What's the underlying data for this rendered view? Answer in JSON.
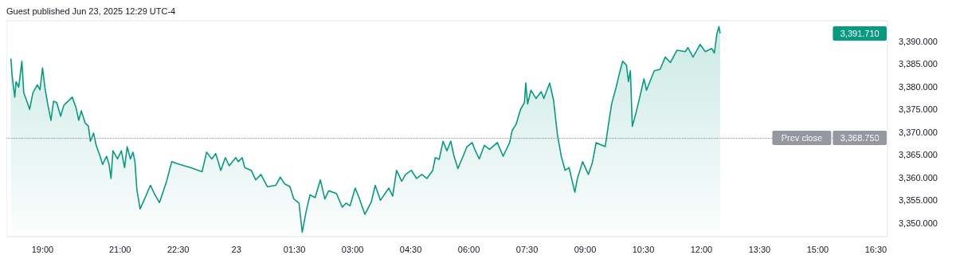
{
  "chart_data": {
    "type": "area",
    "annotations": [
      "Guest published Jun 23, 2025 12:29 UTC-4",
      "3,391.710",
      {
        "text": "3,368.750",
        "x": "2025-06-23T16:48",
        "y": 3368.75
      }
    ],
    "xlim": [
      "2025-06-22T18:04",
      "2025-06-23T16:48"
    ],
    "xticks": [
      {
        "value": "2025-06-22T19:00",
        "label": "19:00"
      },
      {
        "value": "2025-06-22T21:00",
        "label": "21:00"
      },
      {
        "value": "2025-06-22T22:30",
        "label": "22:30"
      },
      {
        "value": "2025-06-23T00:00",
        "label": "23"
      },
      {
        "value": "2025-06-23T01:30",
        "label": "01:30"
      },
      {
        "value": "2025-06-23T03:00",
        "label": "03:00"
      },
      {
        "value": "2025-06-23T04:30",
        "label": "04:30"
      },
      {
        "value": "2025-06-23T06:00",
        "label": "06:00"
      },
      {
        "value": "2025-06-23T07:30",
        "label": "07:30"
      },
      {
        "value": "2025-06-23T09:00",
        "label": "09:00"
      },
      {
        "value": "2025-06-23T10:30",
        "label": "10:30"
      },
      {
        "value": "2025-06-23T12:00",
        "label": "12:00"
      },
      {
        "value": "2025-06-23T13:30",
        "label": "13:30"
      },
      {
        "value": "2025-06-23T15:00",
        "label": "15:00"
      },
      {
        "value": "2025-06-23T16:30",
        "label": "16:30"
      }
    ],
    "ylim": [
      3347,
      3394.5
    ],
    "yticks": [
      {
        "value": 3350,
        "label": "3,350.000"
      },
      {
        "value": 3355,
        "label": "3,355.000"
      },
      {
        "value": 3360,
        "label": "3,360.000"
      },
      {
        "value": 3365,
        "label": "3,365.000"
      },
      {
        "value": 3370,
        "label": "3,370.000"
      },
      {
        "value": 3375,
        "label": "3,375.000"
      },
      {
        "value": 3380,
        "label": "3,380.000"
      },
      {
        "value": 3385,
        "label": "3,385.000"
      },
      {
        "value": 3390,
        "label": "3,390.000"
      }
    ],
    "ref_lines": [
      {
        "axis": "y",
        "value": 3368.75,
        "label": "Prev close",
        "color": "#9598a1",
        "line_style": "dotted"
      }
    ],
    "series": [
      {
        "color": "#089981",
        "x": [
          "2025-06-22T18:11",
          "2025-06-22T18:13",
          "2025-06-22T18:17",
          "2025-06-22T18:19",
          "2025-06-22T18:23",
          "2025-06-22T18:28",
          "2025-06-22T18:31",
          "2025-06-22T18:35",
          "2025-06-22T18:40",
          "2025-06-22T18:45",
          "2025-06-22T18:52",
          "2025-06-22T18:56",
          "2025-06-22T19:00",
          "2025-06-22T19:04",
          "2025-06-22T19:08",
          "2025-06-22T19:13",
          "2025-06-22T19:17",
          "2025-06-22T19:22",
          "2025-06-22T19:28",
          "2025-06-22T19:33",
          "2025-06-22T19:46",
          "2025-06-22T19:52",
          "2025-06-22T19:56",
          "2025-06-22T20:00",
          "2025-06-22T20:06",
          "2025-06-22T20:11",
          "2025-06-22T20:14",
          "2025-06-22T20:19",
          "2025-06-22T20:23",
          "2025-06-22T20:29",
          "2025-06-22T20:33",
          "2025-06-22T20:39",
          "2025-06-22T20:43",
          "2025-06-22T20:46",
          "2025-06-22T20:49",
          "2025-06-22T20:56",
          "2025-06-22T21:02",
          "2025-06-22T21:07",
          "2025-06-22T21:11",
          "2025-06-22T21:16",
          "2025-06-22T21:20",
          "2025-06-22T21:23",
          "2025-06-22T21:26",
          "2025-06-22T21:31",
          "2025-06-22T21:37",
          "2025-06-22T21:47",
          "2025-06-22T21:53",
          "2025-06-22T22:01",
          "2025-06-22T22:12",
          "2025-06-22T22:20",
          "2025-06-22T22:32",
          "2025-06-22T22:49",
          "2025-06-22T23:07",
          "2025-06-22T23:14",
          "2025-06-22T23:22",
          "2025-06-22T23:28",
          "2025-06-22T23:36",
          "2025-06-22T23:43",
          "2025-06-22T23:49",
          "2025-06-22T23:59",
          "2025-06-23T00:03",
          "2025-06-23T00:09",
          "2025-06-23T00:13",
          "2025-06-23T00:23",
          "2025-06-23T00:30",
          "2025-06-23T00:38",
          "2025-06-23T00:48",
          "2025-06-23T01:01",
          "2025-06-23T01:08",
          "2025-06-23T01:15",
          "2025-06-23T01:23",
          "2025-06-23T01:29",
          "2025-06-23T01:37",
          "2025-06-23T01:42",
          "2025-06-23T01:48",
          "2025-06-23T01:54",
          "2025-06-23T02:02",
          "2025-06-23T02:10",
          "2025-06-23T02:17",
          "2025-06-23T02:23",
          "2025-06-23T02:35",
          "2025-06-23T02:44",
          "2025-06-23T02:50",
          "2025-06-23T02:56",
          "2025-06-23T03:04",
          "2025-06-23T03:10",
          "2025-06-23T03:19",
          "2025-06-23T03:29",
          "2025-06-23T03:35",
          "2025-06-23T03:43",
          "2025-06-23T03:56",
          "2025-06-23T04:02",
          "2025-06-23T04:08",
          "2025-06-23T04:16",
          "2025-06-23T04:22",
          "2025-06-23T04:31",
          "2025-06-23T04:39",
          "2025-06-23T04:47",
          "2025-06-23T04:55",
          "2025-06-23T05:04",
          "2025-06-23T05:08",
          "2025-06-23T05:14",
          "2025-06-23T05:20",
          "2025-06-23T05:26",
          "2025-06-23T05:32",
          "2025-06-23T05:37",
          "2025-06-23T05:43",
          "2025-06-23T05:51",
          "2025-06-23T05:57",
          "2025-06-23T06:05",
          "2025-06-23T06:10",
          "2025-06-23T06:16",
          "2025-06-23T06:24",
          "2025-06-23T06:32",
          "2025-06-23T06:44",
          "2025-06-23T06:53",
          "2025-06-23T07:03",
          "2025-06-23T07:07",
          "2025-06-23T07:13",
          "2025-06-23T07:20",
          "2025-06-23T07:26",
          "2025-06-23T07:28",
          "2025-06-23T07:31",
          "2025-06-23T07:36",
          "2025-06-23T07:44",
          "2025-06-23T07:52",
          "2025-06-23T07:56",
          "2025-06-23T08:05",
          "2025-06-23T08:11",
          "2025-06-23T08:17",
          "2025-06-23T08:23",
          "2025-06-23T08:29",
          "2025-06-23T08:35",
          "2025-06-23T08:40",
          "2025-06-23T08:44",
          "2025-06-23T08:48",
          "2025-06-23T08:56",
          "2025-06-23T09:05",
          "2025-06-23T09:11",
          "2025-06-23T09:17",
          "2025-06-23T09:31",
          "2025-06-23T09:35",
          "2025-06-23T09:41",
          "2025-06-23T09:48",
          "2025-06-23T09:53",
          "2025-06-23T09:58",
          "2025-06-23T10:04",
          "2025-06-23T10:07",
          "2025-06-23T10:10",
          "2025-06-23T10:13",
          "2025-06-23T10:19",
          "2025-06-23T10:25",
          "2025-06-23T10:31",
          "2025-06-23T10:35",
          "2025-06-23T10:41",
          "2025-06-23T10:47",
          "2025-06-23T10:56",
          "2025-06-23T11:04",
          "2025-06-23T11:12",
          "2025-06-23T11:22",
          "2025-06-23T11:35",
          "2025-06-23T11:39",
          "2025-06-23T11:47",
          "2025-06-23T11:58",
          "2025-06-23T12:06",
          "2025-06-23T12:16",
          "2025-06-23T12:20",
          "2025-06-23T12:24",
          "2025-06-23T12:27",
          "2025-06-23T12:29"
        ],
        "values": [
          3386.2,
          3382.3,
          3377.7,
          3381.1,
          3379.9,
          3385.6,
          3378.6,
          3377.1,
          3375.0,
          3378.6,
          3380.4,
          3379.3,
          3384.1,
          3379.5,
          3376.2,
          3372.6,
          3376.8,
          3376.5,
          3373.5,
          3375.9,
          3377.7,
          3375.3,
          3372.6,
          3374.7,
          3372.0,
          3371.3,
          3368.0,
          3369.8,
          3367.1,
          3364.7,
          3362.9,
          3364.7,
          3362.9,
          3359.8,
          3365.9,
          3364.1,
          3365.9,
          3362.2,
          3366.8,
          3364.1,
          3365.6,
          3363.5,
          3357.4,
          3353.1,
          3355.0,
          3358.3,
          3356.5,
          3354.5,
          3359.2,
          3363.5,
          3362.9,
          3362.2,
          3361.3,
          3365.6,
          3364.1,
          3365.3,
          3361.6,
          3364.4,
          3362.6,
          3364.4,
          3363.5,
          3364.4,
          3362.2,
          3361.6,
          3359.5,
          3360.7,
          3358.0,
          3358.3,
          3360.1,
          3358.6,
          3358.0,
          3355.3,
          3354.4,
          3348.0,
          3352.5,
          3356.2,
          3355.6,
          3359.5,
          3355.3,
          3357.1,
          3356.5,
          3353.5,
          3354.4,
          3353.8,
          3357.7,
          3355.6,
          3351.9,
          3354.7,
          3358.3,
          3355.0,
          3357.7,
          3355.9,
          3361.6,
          3359.2,
          3360.7,
          3361.6,
          3359.8,
          3360.7,
          3359.8,
          3361.6,
          3364.4,
          3364.0,
          3368.0,
          3365.9,
          3368.0,
          3364.7,
          3362.0,
          3364.7,
          3366.8,
          3367.7,
          3365.9,
          3364.1,
          3367.1,
          3366.2,
          3367.7,
          3364.7,
          3367.7,
          3370.4,
          3371.7,
          3375.0,
          3376.5,
          3380.8,
          3376.2,
          3379.2,
          3377.4,
          3378.9,
          3377.4,
          3380.8,
          3377.1,
          3369.5,
          3364.7,
          3361.6,
          3362.2,
          3359.2,
          3356.8,
          3359.8,
          3363.5,
          3360.7,
          3363.2,
          3367.7,
          3366.8,
          3370.7,
          3376.2,
          3379.9,
          3382.9,
          3385.6,
          3384.7,
          3381.1,
          3383.5,
          3371.3,
          3374.4,
          3378.0,
          3381.7,
          3379.2,
          3381.4,
          3383.5,
          3383.8,
          3386.5,
          3385.3,
          3388.0,
          3387.7,
          3388.6,
          3386.5,
          3389.3,
          3387.7,
          3388.4,
          3387.4,
          3391.7,
          3393.2,
          3391.7
        ]
      }
    ]
  }
}
